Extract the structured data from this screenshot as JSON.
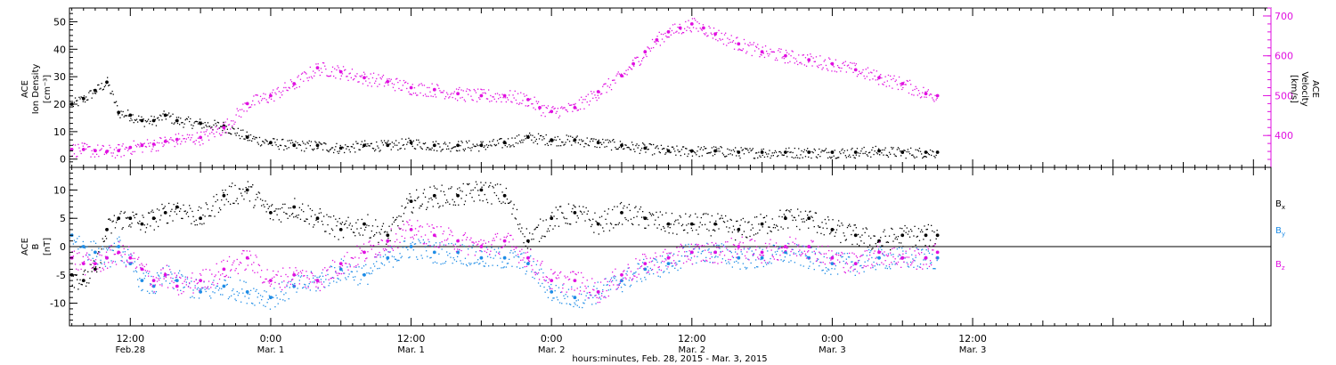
{
  "colors": {
    "black": "#000000",
    "magenta": "#e010e0",
    "blue": "#1e8ce6"
  },
  "x_axis": {
    "title": "hours:minutes, Feb. 28, 2015 - Mar.  3, 2015",
    "range_hours": [
      6.8,
      109.5
    ],
    "major_ticks": [
      {
        "hour": 12,
        "time": "12:00",
        "date": "Feb.28"
      },
      {
        "hour": 24,
        "time": "0:00",
        "date": "Mar. 1"
      },
      {
        "hour": 36,
        "time": "12:00",
        "date": "Mar. 1"
      },
      {
        "hour": 48,
        "time": "0:00",
        "date": "Mar. 2"
      },
      {
        "hour": 60,
        "time": "12:00",
        "date": "Mar. 2"
      },
      {
        "hour": 72,
        "time": "0:00",
        "date": "Mar. 3"
      },
      {
        "hour": 84,
        "time": "12:00",
        "date": "Mar. 3"
      }
    ]
  },
  "chart_data": [
    {
      "type": "scatter",
      "panel": "top",
      "x_unit": "hours since Feb. 28, 2015 00:00",
      "xlim": [
        6.8,
        109.5
      ],
      "left_axis": {
        "label_lines": [
          "ACE",
          "Ion Density",
          "[cm⁻³]"
        ],
        "ylim": [
          -3,
          55
        ],
        "ticks": [
          "0",
          "10",
          "20",
          "30",
          "40",
          "50"
        ]
      },
      "right_axis": {
        "label_lines": [
          "ACE",
          "Velocity",
          "[km/s]"
        ],
        "ylim": [
          320,
          720
        ],
        "ticks": [
          "400",
          "500",
          "600",
          "700"
        ],
        "color": "#e010e0"
      },
      "series": [
        {
          "name": "ACE Ion Density",
          "axis": "left",
          "color": "#000000",
          "x": [
            7,
            8,
            9,
            10,
            11,
            12,
            13,
            14,
            15,
            16,
            18,
            20,
            22,
            24,
            26,
            28,
            30,
            32,
            34,
            36,
            38,
            40,
            42,
            44,
            46,
            48,
            50,
            52,
            54,
            56,
            58,
            60,
            62,
            64,
            66,
            68,
            70,
            72,
            74,
            76,
            78,
            80,
            81
          ],
          "y": [
            20,
            22,
            25,
            28,
            17,
            16,
            14,
            14,
            16,
            14,
            13,
            12,
            8,
            6,
            5,
            5,
            4,
            5,
            5,
            6,
            5,
            5,
            5,
            6,
            8,
            7,
            7,
            6,
            5,
            4,
            3,
            3,
            3,
            2.5,
            2.5,
            2.5,
            2.5,
            2.5,
            2.5,
            3,
            2.5,
            2.5,
            2.5
          ]
        },
        {
          "name": "ACE Velocity",
          "axis": "right",
          "color": "#e010e0",
          "x": [
            7,
            8,
            9,
            10,
            11,
            12,
            13,
            14,
            15,
            16,
            18,
            20,
            22,
            24,
            26,
            28,
            30,
            32,
            34,
            36,
            38,
            40,
            42,
            44,
            46,
            47,
            48,
            50,
            52,
            54,
            55,
            56,
            57,
            58,
            59,
            60,
            61,
            62,
            64,
            66,
            68,
            70,
            72,
            74,
            76,
            78,
            80,
            81
          ],
          "y": [
            365,
            365,
            362,
            360,
            362,
            370,
            375,
            378,
            385,
            390,
            395,
            420,
            480,
            500,
            530,
            570,
            560,
            545,
            535,
            520,
            515,
            505,
            500,
            500,
            490,
            470,
            460,
            470,
            510,
            550,
            580,
            610,
            640,
            660,
            670,
            680,
            670,
            655,
            630,
            610,
            600,
            590,
            580,
            565,
            545,
            530,
            505,
            500
          ]
        }
      ]
    },
    {
      "type": "scatter",
      "panel": "bottom",
      "x_unit": "hours since Feb. 28, 2015 00:00",
      "xlim": [
        6.8,
        109.5
      ],
      "left_axis": {
        "label_lines": [
          "ACE",
          "B",
          "[nT]"
        ],
        "ylim": [
          -14,
          14
        ],
        "ticks": [
          "-10",
          "-5",
          "0",
          "5",
          "10"
        ]
      },
      "zero_line": true,
      "series": [
        {
          "name": "Bx",
          "color": "#000000",
          "x": [
            7,
            8,
            9,
            10,
            11,
            12,
            13,
            14,
            15,
            16,
            18,
            20,
            22,
            24,
            26,
            28,
            30,
            32,
            34,
            36,
            38,
            40,
            42,
            44,
            46,
            48,
            50,
            52,
            54,
            56,
            58,
            60,
            62,
            64,
            66,
            68,
            70,
            72,
            74,
            76,
            78,
            80,
            81
          ],
          "y": [
            -5,
            -6,
            -4,
            3,
            5,
            5,
            4,
            5,
            6,
            7,
            5,
            9,
            10,
            6,
            7,
            5,
            3,
            4,
            2,
            8,
            9,
            9,
            10,
            9,
            1,
            5,
            6,
            4,
            6,
            5,
            4,
            4,
            4,
            3,
            4,
            5,
            5,
            3,
            2,
            1,
            2,
            2,
            2
          ]
        },
        {
          "name": "By",
          "color": "#1e8ce6",
          "x": [
            7,
            8,
            9,
            10,
            11,
            12,
            13,
            14,
            15,
            16,
            18,
            20,
            22,
            24,
            26,
            28,
            30,
            32,
            34,
            36,
            38,
            40,
            42,
            44,
            46,
            48,
            50,
            52,
            54,
            56,
            58,
            60,
            62,
            64,
            66,
            68,
            70,
            72,
            74,
            76,
            78,
            80,
            81
          ],
          "y": [
            2,
            0,
            -1,
            -2,
            0,
            -3,
            -6,
            -7,
            -5,
            -6,
            -8,
            -7,
            -8,
            -9,
            -7,
            -6,
            -4,
            -5,
            -2,
            0,
            -1,
            -1,
            -2,
            -2,
            -3,
            -8,
            -9,
            -8,
            -6,
            -4,
            -3,
            -1,
            -1,
            -2,
            -2,
            -1,
            -2,
            -3,
            -3,
            -2,
            -2,
            -2,
            -2
          ]
        },
        {
          "name": "Bz",
          "color": "#e010e0",
          "x": [
            7,
            8,
            9,
            10,
            11,
            12,
            13,
            14,
            15,
            16,
            18,
            20,
            22,
            24,
            26,
            28,
            30,
            32,
            34,
            36,
            38,
            40,
            42,
            44,
            46,
            48,
            50,
            52,
            54,
            56,
            58,
            60,
            62,
            64,
            66,
            68,
            70,
            72,
            74,
            76,
            78,
            80,
            81
          ],
          "y": [
            -2,
            -3,
            -3,
            -2,
            -1,
            -2,
            -4,
            -6,
            -5,
            -7,
            -6,
            -4,
            -2,
            -6,
            -5,
            -6,
            -3,
            -1,
            1,
            3,
            2,
            1,
            0,
            1,
            -2,
            -6,
            -6,
            -8,
            -5,
            -3,
            -2,
            -1,
            -1,
            0,
            -1,
            0,
            0,
            -2,
            -3,
            -1,
            -2,
            -2,
            -1
          ]
        }
      ],
      "legend": [
        {
          "label": "B",
          "subscript": "x",
          "color": "#000000"
        },
        {
          "label": "B",
          "subscript": "y",
          "color": "#1e8ce6"
        },
        {
          "label": "B",
          "subscript": "z",
          "color": "#e010e0"
        }
      ]
    }
  ]
}
